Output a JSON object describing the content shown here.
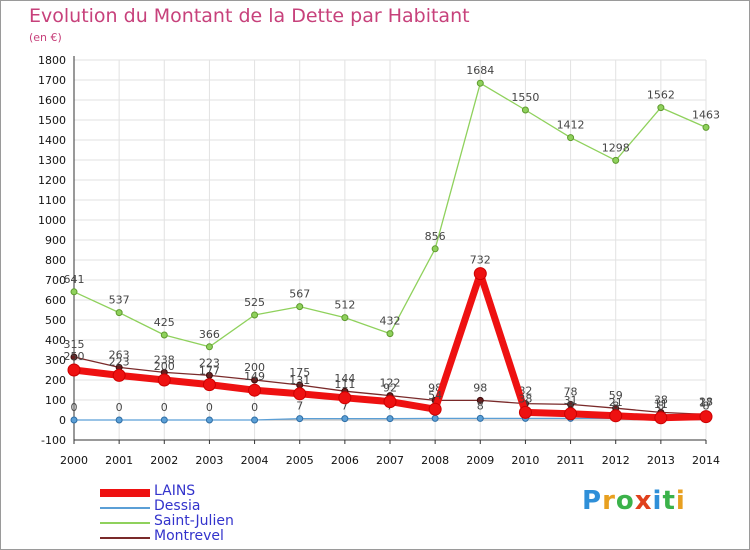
{
  "chart_data": {
    "type": "line",
    "title": "Evolution du Montant de la Dette par Habitant",
    "subtitle": "(en €)",
    "x": [
      2000,
      2001,
      2002,
      2003,
      2004,
      2005,
      2006,
      2007,
      2008,
      2009,
      2010,
      2011,
      2012,
      2013,
      2014
    ],
    "ylim": [
      -100,
      1800
    ],
    "yticks": [
      -100,
      0,
      100,
      200,
      300,
      400,
      500,
      600,
      700,
      800,
      900,
      1000,
      1100,
      1200,
      1300,
      1400,
      1500,
      1600,
      1700,
      1800
    ],
    "grid": true,
    "legend_position": "bottom-left",
    "series": [
      {
        "name": "Saint-Julien",
        "color": "#8fd15c",
        "values": [
          641,
          537,
          425,
          366,
          525,
          567,
          512,
          432,
          856,
          1684,
          1550,
          1412,
          1298,
          1562,
          1463
        ]
      },
      {
        "name": "Montrevel",
        "color": "#7a2a2a",
        "values": [
          315,
          263,
          238,
          223,
          200,
          175,
          144,
          122,
          98,
          98,
          82,
          78,
          59,
          38,
          28
        ]
      },
      {
        "name": "Dessia",
        "color": "#5b9fd6",
        "values": [
          0,
          0,
          0,
          0,
          0,
          7,
          7,
          7,
          8,
          8,
          8,
          8,
          8,
          8,
          8
        ]
      },
      {
        "name": "LAINS",
        "color": "#ee1111",
        "values": [
          250,
          223,
          200,
          177,
          149,
          131,
          111,
          92,
          54,
          732,
          38,
          31,
          21,
          11,
          17
        ]
      }
    ],
    "legend_order": [
      "LAINS",
      "Dessia",
      "Saint-Julien",
      "Montrevel"
    ]
  },
  "logo": {
    "text": "Proxiti",
    "letters": [
      "P",
      "r",
      "o",
      "x",
      "i",
      "t",
      "i"
    ],
    "colors": [
      "#2f8fd8",
      "#e8a020",
      "#3bb24a",
      "#e0401c",
      "#2f8fd8",
      "#3bb24a",
      "#e8a020"
    ]
  }
}
